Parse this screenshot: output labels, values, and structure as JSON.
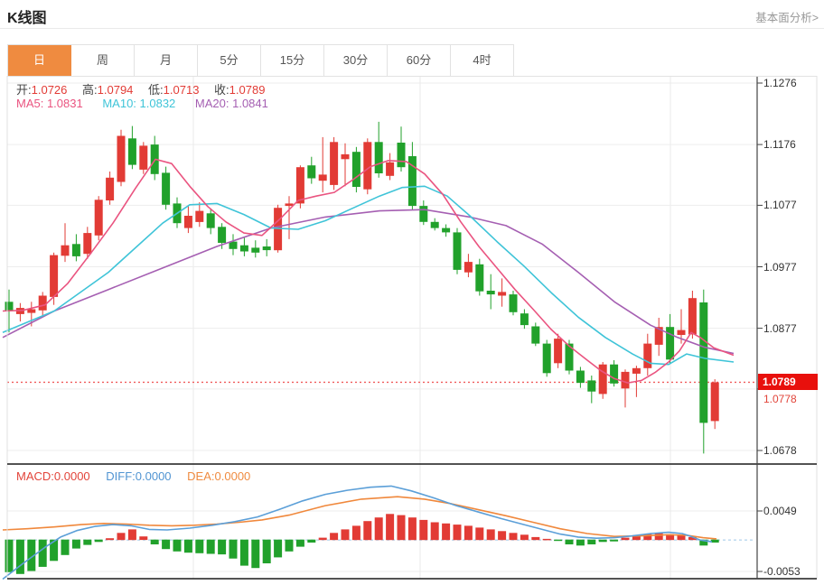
{
  "header": {
    "title": "K线图",
    "analysis_link": "基本面分析>"
  },
  "tabs": {
    "selected_index": 0,
    "items": [
      "日",
      "周",
      "月",
      "5分",
      "15分",
      "30分",
      "60分",
      "4时"
    ]
  },
  "ohlc_bar": {
    "open_label": "开:",
    "open_value": "1.0726",
    "high_label": "高:",
    "high_value": "1.0794",
    "low_label": "低:",
    "low_value": "1.0713",
    "close_label": "收:",
    "close_value": "1.0789"
  },
  "ma_bar": {
    "ma5": "MA5: 1.0831",
    "ma10": "MA10: 1.0832",
    "ma20": "MA20: 1.0841"
  },
  "macd_bar": {
    "macd": "MACD:0.0000",
    "diff": "DIFF:0.0000",
    "dea": "DEA:0.0000"
  },
  "price_axis": {
    "hidden_tick": "1.0778",
    "current_price_badge": "1.0789"
  },
  "colors": {
    "up": "#e23b35",
    "down": "#21a12b",
    "ma5": "#ea5480",
    "ma10": "#3fc4d8",
    "ma20": "#a55fb2",
    "diff": "#5b9fd8",
    "dea": "#f0883c",
    "tab_active": "#ef8b40",
    "badge": "#e8100c",
    "price_line": "#f05b5b",
    "zero_line": "#9cc8e8",
    "grid": "#ededed",
    "vgrid": "#e9e9e9",
    "axis": "#444",
    "divider": "#1a1a1a",
    "panel_border": "#e0e0e0"
  },
  "chart_data": [
    {
      "type": "candlestick",
      "title": "K线图 (日)",
      "ylim": [
        1.0659,
        1.1288
      ],
      "yticks": [
        1.1276,
        1.1176,
        1.1077,
        1.0977,
        1.0877,
        1.0778,
        1.0678
      ],
      "current_price": 1.0789,
      "grid": true,
      "ohlc": [
        [
          1.092,
          1.094,
          1.087,
          1.0905
        ],
        [
          1.09,
          1.0918,
          1.0888,
          1.091
        ],
        [
          1.0902,
          1.092,
          1.088,
          1.0908
        ],
        [
          1.0906,
          1.0936,
          1.0896,
          1.093
        ],
        [
          1.0928,
          1.1,
          1.0915,
          1.0996
        ],
        [
          1.0995,
          1.1048,
          1.0985,
          1.1012
        ],
        [
          1.1014,
          1.103,
          1.0986,
          1.0994
        ],
        [
          1.0998,
          1.1042,
          1.099,
          1.1032
        ],
        [
          1.1028,
          1.1092,
          1.102,
          1.1086
        ],
        [
          1.1085,
          1.1132,
          1.1078,
          1.1122
        ],
        [
          1.1115,
          1.12,
          1.1108,
          1.119
        ],
        [
          1.1186,
          1.1206,
          1.1136,
          1.1143
        ],
        [
          1.1135,
          1.118,
          1.1128,
          1.1174
        ],
        [
          1.1176,
          1.119,
          1.1118,
          1.1128
        ],
        [
          1.113,
          1.114,
          1.107,
          1.1078
        ],
        [
          1.108,
          1.109,
          1.104,
          1.1048
        ],
        [
          1.104,
          1.1076,
          1.1032,
          1.106
        ],
        [
          1.105,
          1.1082,
          1.1042,
          1.1068
        ],
        [
          1.1064,
          1.1072,
          1.103,
          1.104
        ],
        [
          1.1042,
          1.1048,
          1.1006,
          1.1016
        ],
        [
          1.1018,
          1.103,
          1.0996,
          1.1006
        ],
        [
          1.1012,
          1.1024,
          1.0994,
          1.1002
        ],
        [
          1.1008,
          1.102,
          1.0992,
          1.1
        ],
        [
          1.101,
          1.1022,
          1.0994,
          1.1004
        ],
        [
          1.1004,
          1.1078,
          1.1,
          1.1073
        ],
        [
          1.1076,
          1.1092,
          1.1022,
          1.108
        ],
        [
          1.108,
          1.1142,
          1.1072,
          1.1139
        ],
        [
          1.1142,
          1.1156,
          1.1112,
          1.1121
        ],
        [
          1.1117,
          1.1188,
          1.1098,
          1.1127
        ],
        [
          1.111,
          1.1188,
          1.1102,
          1.118
        ],
        [
          1.1152,
          1.1178,
          1.1108,
          1.116
        ],
        [
          1.1164,
          1.1172,
          1.1098,
          1.1107
        ],
        [
          1.1103,
          1.1186,
          1.1095,
          1.118
        ],
        [
          1.118,
          1.1213,
          1.1122,
          1.1129
        ],
        [
          1.1125,
          1.1162,
          1.1118,
          1.1147
        ],
        [
          1.1179,
          1.1205,
          1.1132,
          1.1139
        ],
        [
          1.1157,
          1.118,
          1.107,
          1.1076
        ],
        [
          1.1076,
          1.1085,
          1.1045,
          1.105
        ],
        [
          1.105,
          1.1056,
          1.1036,
          1.104
        ],
        [
          1.104,
          1.1046,
          1.1026,
          1.1033
        ],
        [
          1.1033,
          1.104,
          1.0965,
          1.0972
        ],
        [
          1.0968,
          1.0998,
          1.096,
          1.0985
        ],
        [
          1.0981,
          1.099,
          1.093,
          1.0937
        ],
        [
          1.0938,
          1.0965,
          1.0908,
          1.0932
        ],
        [
          1.093,
          1.0958,
          1.0912,
          1.0936
        ],
        [
          1.0932,
          1.0938,
          1.0898,
          1.0903
        ],
        [
          1.0901,
          1.0908,
          1.0876,
          1.0882
        ],
        [
          1.088,
          1.0886,
          1.0848,
          1.0852
        ],
        [
          1.0852,
          1.0858,
          1.0798,
          1.0804
        ],
        [
          1.082,
          1.0868,
          1.0812,
          1.086
        ],
        [
          1.0852,
          1.0858,
          1.0802,
          1.0808
        ],
        [
          1.0808,
          1.0814,
          1.078,
          1.0788
        ],
        [
          1.0792,
          1.08,
          1.0755,
          1.0774
        ],
        [
          1.077,
          1.0822,
          1.0762,
          1.0818
        ],
        [
          1.0818,
          1.0825,
          1.0782,
          1.0787
        ],
        [
          1.0779,
          1.081,
          1.0748,
          1.0806
        ],
        [
          1.0803,
          1.0816,
          1.0765,
          1.0812
        ],
        [
          1.0812,
          1.0868,
          1.08,
          1.0852
        ],
        [
          1.085,
          1.0894,
          1.0832,
          1.0879
        ],
        [
          1.0879,
          1.09,
          1.082,
          1.0826
        ],
        [
          1.0866,
          1.0908,
          1.0852,
          1.0874
        ],
        [
          1.0867,
          1.0938,
          1.086,
          1.0926
        ],
        [
          1.0919,
          1.094,
          1.0673,
          1.0723
        ],
        [
          1.0726,
          1.0794,
          1.0713,
          1.0789
        ]
      ],
      "ma5_line": [
        [
          3,
          1.0905
        ],
        [
          25,
          1.0906
        ],
        [
          50,
          1.0915
        ],
        [
          75,
          1.095
        ],
        [
          100,
          1.0998
        ],
        [
          125,
          1.1048
        ],
        [
          150,
          1.1105
        ],
        [
          172,
          1.1152
        ],
        [
          190,
          1.1145
        ],
        [
          210,
          1.1108
        ],
        [
          230,
          1.1075
        ],
        [
          250,
          1.105
        ],
        [
          270,
          1.1032
        ],
        [
          290,
          1.1028
        ],
        [
          310,
          1.1055
        ],
        [
          330,
          1.1085
        ],
        [
          350,
          1.1092
        ],
        [
          370,
          1.1098
        ],
        [
          390,
          1.1118
        ],
        [
          410,
          1.114
        ],
        [
          430,
          1.115
        ],
        [
          450,
          1.1148
        ],
        [
          470,
          1.1128
        ],
        [
          490,
          1.1095
        ],
        [
          510,
          1.105
        ],
        [
          530,
          1.101
        ],
        [
          550,
          1.0975
        ],
        [
          570,
          1.094
        ],
        [
          590,
          1.0908
        ],
        [
          610,
          1.0875
        ],
        [
          630,
          1.0848
        ],
        [
          650,
          1.0825
        ],
        [
          665,
          1.0808
        ],
        [
          680,
          1.0795
        ],
        [
          695,
          1.0788
        ],
        [
          710,
          1.0792
        ],
        [
          725,
          1.0805
        ],
        [
          740,
          1.0822
        ],
        [
          752,
          1.084
        ],
        [
          765,
          1.087
        ],
        [
          775,
          1.0862
        ],
        [
          790,
          1.0845
        ],
        [
          812,
          1.0833
        ]
      ],
      "ma10_line": [
        [
          3,
          1.087
        ],
        [
          60,
          1.0905
        ],
        [
          120,
          1.0968
        ],
        [
          180,
          1.1048
        ],
        [
          210,
          1.1078
        ],
        [
          240,
          1.108
        ],
        [
          270,
          1.1062
        ],
        [
          300,
          1.104
        ],
        [
          330,
          1.1038
        ],
        [
          360,
          1.1052
        ],
        [
          390,
          1.1072
        ],
        [
          420,
          1.1092
        ],
        [
          445,
          1.1106
        ],
        [
          470,
          1.1108
        ],
        [
          495,
          1.1092
        ],
        [
          520,
          1.106
        ],
        [
          550,
          1.1018
        ],
        [
          580,
          1.0978
        ],
        [
          610,
          1.0935
        ],
        [
          640,
          1.0895
        ],
        [
          670,
          1.0862
        ],
        [
          700,
          1.0835
        ],
        [
          720,
          1.082
        ],
        [
          740,
          1.0818
        ],
        [
          760,
          1.0835
        ],
        [
          780,
          1.0828
        ],
        [
          812,
          1.0822
        ]
      ],
      "ma20_line": [
        [
          3,
          1.0862
        ],
        [
          60,
          1.0905
        ],
        [
          120,
          1.094
        ],
        [
          180,
          1.0975
        ],
        [
          240,
          1.101
        ],
        [
          300,
          1.104
        ],
        [
          360,
          1.1058
        ],
        [
          420,
          1.1068
        ],
        [
          470,
          1.107
        ],
        [
          520,
          1.1058
        ],
        [
          560,
          1.1044
        ],
        [
          600,
          1.1014
        ],
        [
          640,
          1.0968
        ],
        [
          680,
          1.092
        ],
        [
          720,
          1.0882
        ],
        [
          750,
          1.0862
        ],
        [
          780,
          1.0846
        ],
        [
          812,
          1.0836
        ]
      ]
    },
    {
      "type": "bar",
      "title": "MACD",
      "yticks": [
        0.0049,
        -0.0053
      ],
      "zero_dashed": true,
      "values": [
        -0.0055,
        -0.0058,
        -0.0053,
        -0.0046,
        -0.0036,
        -0.0026,
        -0.0015,
        -0.0009,
        -0.0004,
        0.0003,
        0.0012,
        0.0018,
        0.0006,
        -0.0008,
        -0.0016,
        -0.002,
        -0.0022,
        -0.0023,
        -0.0024,
        -0.0025,
        -0.0032,
        -0.0044,
        -0.0048,
        -0.004,
        -0.003,
        -0.002,
        -0.0012,
        -0.0005,
        0.0004,
        0.0012,
        0.0018,
        0.0024,
        0.0032,
        0.0038,
        0.0044,
        0.0042,
        0.0038,
        0.0034,
        0.003,
        0.0028,
        0.0026,
        0.0024,
        0.0021,
        0.0018,
        0.0015,
        0.0012,
        0.0009,
        0.0005,
        0.0002,
        -0.0002,
        -0.0008,
        -0.001,
        -0.0008,
        -0.0004,
        -0.0003,
        0.0004,
        0.0008,
        0.001,
        0.0012,
        0.001,
        0.0008,
        0.0005,
        -0.001,
        -0.0005
      ],
      "diff_line": [
        [
          3,
          -0.0066
        ],
        [
          25,
          -0.004
        ],
        [
          50,
          -0.0012
        ],
        [
          67,
          0.0005
        ],
        [
          85,
          0.0016
        ],
        [
          105,
          0.0023
        ],
        [
          125,
          0.0026
        ],
        [
          145,
          0.0024
        ],
        [
          165,
          0.0018
        ],
        [
          185,
          0.0017
        ],
        [
          210,
          0.002
        ],
        [
          235,
          0.0025
        ],
        [
          260,
          0.0031
        ],
        [
          285,
          0.0039
        ],
        [
          310,
          0.0052
        ],
        [
          335,
          0.0066
        ],
        [
          360,
          0.0077
        ],
        [
          385,
          0.0084
        ],
        [
          410,
          0.0089
        ],
        [
          433,
          0.0091
        ],
        [
          455,
          0.0083
        ],
        [
          480,
          0.0071
        ],
        [
          505,
          0.0058
        ],
        [
          530,
          0.0047
        ],
        [
          555,
          0.0036
        ],
        [
          580,
          0.0026
        ],
        [
          600,
          0.0018
        ],
        [
          620,
          0.001
        ],
        [
          640,
          0.0005
        ],
        [
          660,
          0.0003
        ],
        [
          680,
          0.0004
        ],
        [
          700,
          0.0007
        ],
        [
          720,
          0.0011
        ],
        [
          740,
          0.0013
        ],
        [
          755,
          0.0011
        ],
        [
          765,
          0.0006
        ],
        [
          775,
          0.0
        ],
        [
          788,
          -0.0003
        ]
      ],
      "dea_line": [
        [
          3,
          0.0017
        ],
        [
          30,
          0.0019
        ],
        [
          60,
          0.0022
        ],
        [
          90,
          0.0026
        ],
        [
          115,
          0.0028
        ],
        [
          140,
          0.0027
        ],
        [
          165,
          0.0025
        ],
        [
          190,
          0.0024
        ],
        [
          215,
          0.0025
        ],
        [
          240,
          0.0027
        ],
        [
          265,
          0.003
        ],
        [
          290,
          0.0034
        ],
        [
          320,
          0.0042
        ],
        [
          360,
          0.0058
        ],
        [
          400,
          0.0069
        ],
        [
          440,
          0.0073
        ],
        [
          470,
          0.0069
        ],
        [
          500,
          0.0061
        ],
        [
          530,
          0.0051
        ],
        [
          560,
          0.0041
        ],
        [
          590,
          0.003
        ],
        [
          620,
          0.0019
        ],
        [
          650,
          0.0011
        ],
        [
          680,
          0.0006
        ],
        [
          710,
          0.0007
        ],
        [
          740,
          0.0009
        ],
        [
          760,
          0.0008
        ],
        [
          778,
          0.0004
        ],
        [
          793,
          0.0002
        ]
      ]
    }
  ]
}
